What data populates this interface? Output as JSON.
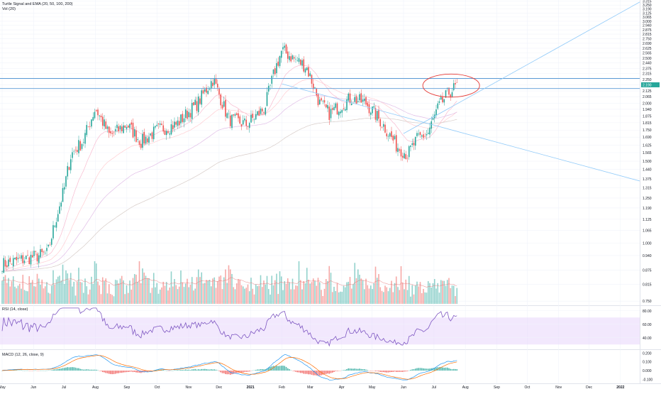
{
  "main_pane": {
    "indicator_label": "Turtle Signal and EMA (20, 50, 100, 200)",
    "volume_label": "Vol (20)"
  },
  "rsi_pane": {
    "label": "RSI (14, close)"
  },
  "macd_pane": {
    "label": "MACD (12, 26, close, 9)"
  },
  "colors": {
    "up": "#26a69a",
    "down": "#ef5350",
    "grid": "#f0f3fa",
    "hline": "#5b9bd5",
    "trend": "#90caf9",
    "circle": "#e53935",
    "rsi_line": "#7e57c2",
    "rsi_band": "#ead8fb",
    "macd_line": "#2196f3",
    "signal_line": "#ff6d00"
  },
  "chart_data": [
    {
      "type": "candlestick",
      "pane": "price",
      "y_scale": "log",
      "ylim": [
        0.74,
        3.31
      ],
      "y_ticks": [
        "0.750",
        "0.815",
        "0.875",
        "0.940",
        "1.000",
        "1.065",
        "1.125",
        "1.190",
        "1.250",
        "1.315",
        "1.375",
        "1.440",
        "1.500",
        "1.565",
        "1.625",
        "1.690",
        "1.750",
        "1.815",
        "1.875",
        "1.940",
        "2.000",
        "2.065",
        "2.125",
        "2.190",
        "2.250",
        "2.315",
        "2.375",
        "2.440",
        "2.500",
        "2.565",
        "2.625",
        "2.690",
        "2.750",
        "2.815",
        "2.875",
        "2.940",
        "3.000",
        "3.065",
        "3.125",
        "3.190",
        "3.250",
        "3.315"
      ],
      "x_labels": [
        "May",
        "Jun",
        "Jul",
        "Aug",
        "Sep",
        "Oct",
        "Nov",
        "Dec",
        "2021",
        "Feb",
        "Mar",
        "Apr",
        "May",
        "Jun",
        "Jul",
        "Aug",
        "Sep",
        "Oct",
        "Nov",
        "Dec",
        "2022"
      ],
      "price_keypoints": [
        [
          "2020-05-01",
          0.9
        ],
        [
          "2020-06-15",
          0.95
        ],
        [
          "2020-07-01",
          1.3
        ],
        [
          "2020-07-08",
          1.55
        ],
        [
          "2020-07-20",
          1.66
        ],
        [
          "2020-08-01",
          1.95
        ],
        [
          "2020-08-15",
          1.7
        ],
        [
          "2020-09-01",
          1.8
        ],
        [
          "2020-09-15",
          1.65
        ],
        [
          "2020-10-01",
          1.75
        ],
        [
          "2020-10-20",
          1.8
        ],
        [
          "2020-11-10",
          2.0
        ],
        [
          "2020-11-25",
          2.25
        ],
        [
          "2020-12-10",
          1.85
        ],
        [
          "2020-12-28",
          1.8
        ],
        [
          "2021-01-15",
          1.95
        ],
        [
          "2021-01-25",
          2.35
        ],
        [
          "2021-02-01",
          2.6
        ],
        [
          "2021-02-12",
          2.5
        ],
        [
          "2021-02-25",
          2.4
        ],
        [
          "2021-03-10",
          2.0
        ],
        [
          "2021-03-20",
          1.9
        ],
        [
          "2021-04-10",
          2.05
        ],
        [
          "2021-04-25",
          2.0
        ],
        [
          "2021-05-10",
          1.82
        ],
        [
          "2021-05-25",
          1.62
        ],
        [
          "2021-06-05",
          1.55
        ],
        [
          "2021-06-15",
          1.68
        ],
        [
          "2021-06-25",
          1.72
        ],
        [
          "2021-07-05",
          1.95
        ],
        [
          "2021-07-15",
          2.1
        ],
        [
          "2021-07-25",
          2.19
        ]
      ],
      "last_price": "2.190",
      "horizontal_lines": [
        2.26,
        2.15
      ],
      "drawing_time_end": "2021-07-28",
      "trendlines": [
        {
          "from": [
            "2021-02-01",
            2.2
          ],
          "to": [
            "2022-01-20",
            1.36
          ]
        },
        {
          "from": [
            "2021-06-01",
            1.72
          ],
          "to": [
            "2022-01-20",
            3.3
          ]
        }
      ],
      "ellipse": {
        "center": [
          "2021-07-18",
          2.18
        ],
        "rx_days": 28,
        "ry_price": [
          2.06,
          2.31
        ]
      },
      "volume_hint": "volume bars beneath price with 20-period average line"
    },
    {
      "type": "line",
      "pane": "rsi",
      "ylim": [
        25,
        85
      ],
      "y_ticks": [
        "80.00",
        "60.00",
        "40.00"
      ],
      "band": [
        30,
        70
      ],
      "series": [
        {
          "values_hint": "oscillates 35-75"
        }
      ]
    },
    {
      "type": "histogram+line",
      "pane": "macd",
      "ylim": [
        -0.13,
        0.22
      ],
      "y_ticks": [
        "0.200",
        "0.100",
        "0.000",
        "-0.100"
      ]
    }
  ]
}
